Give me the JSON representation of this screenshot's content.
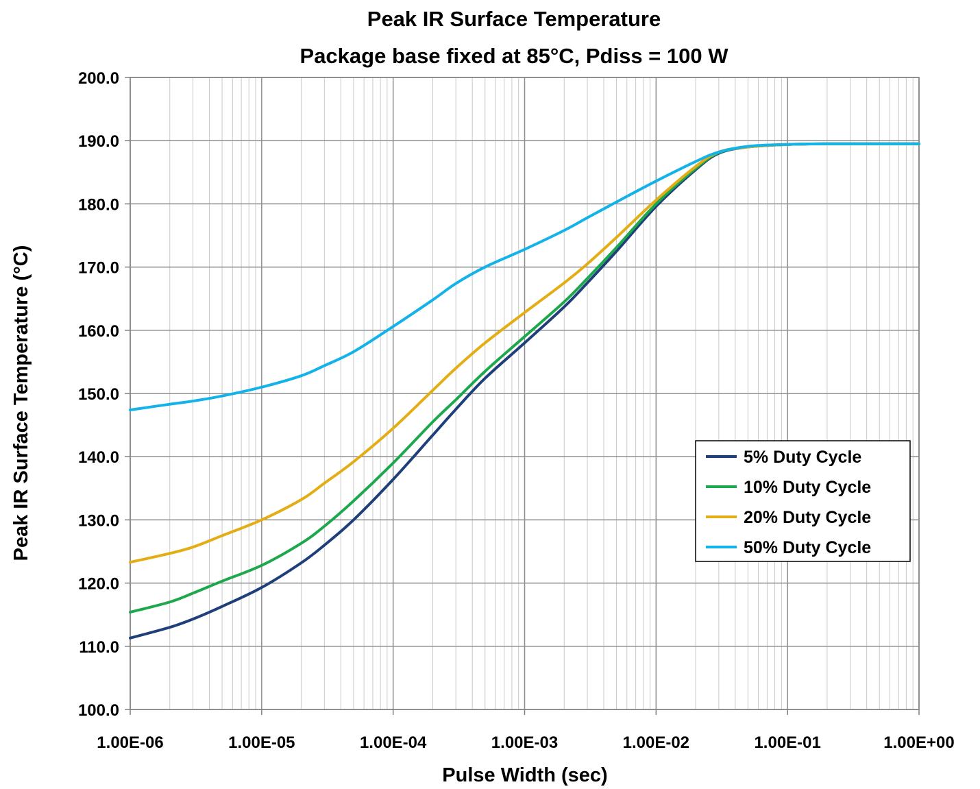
{
  "chart_data": {
    "type": "line",
    "title": "Peak IR Surface Temperature",
    "subtitle": "Package base fixed at 85°C, Pdiss = 100 W",
    "xlabel": "Pulse Width (sec)",
    "ylabel": "Peak IR Surface Temperature (°C)",
    "xscale": "log",
    "xlim": [
      1e-06,
      1
    ],
    "ylim": [
      100,
      200
    ],
    "xticks": [
      1e-06,
      1e-05,
      0.0001,
      0.001,
      0.01,
      0.1,
      1
    ],
    "xtick_labels": [
      "1.00E-06",
      "1.00E-05",
      "1.00E-04",
      "1.00E-03",
      "1.00E-02",
      "1.00E-01",
      "1.00E+00"
    ],
    "yticks": [
      100,
      110,
      120,
      130,
      140,
      150,
      160,
      170,
      180,
      190,
      200
    ],
    "ytick_labels": [
      "100.0",
      "110.0",
      "120.0",
      "130.0",
      "140.0",
      "150.0",
      "160.0",
      "170.0",
      "180.0",
      "190.0",
      "200.0"
    ],
    "grid": true,
    "legend_position": "right-middle",
    "series": [
      {
        "name": "5% Duty Cycle",
        "color": "#1f3f7a",
        "x": [
          1e-06,
          2e-06,
          3e-06,
          5e-06,
          1e-05,
          2e-05,
          3e-05,
          5e-05,
          0.0001,
          0.0002,
          0.0003,
          0.0005,
          0.001,
          0.002,
          0.003,
          0.005,
          0.01,
          0.02,
          0.03,
          0.05,
          0.1,
          0.2,
          0.5,
          1
        ],
        "y": [
          111.3,
          113.0,
          114.3,
          116.3,
          119.3,
          123.2,
          126.0,
          130.0,
          136.4,
          143.4,
          147.5,
          152.4,
          158.0,
          163.7,
          167.5,
          172.5,
          179.6,
          185.4,
          188.0,
          189.0,
          189.4,
          189.5,
          189.5,
          189.5
        ]
      },
      {
        "name": "10% Duty Cycle",
        "color": "#1ea84e",
        "x": [
          1e-06,
          2e-06,
          3e-06,
          5e-06,
          1e-05,
          2e-05,
          3e-05,
          5e-05,
          0.0001,
          0.0002,
          0.0003,
          0.0005,
          0.001,
          0.002,
          0.003,
          0.005,
          0.01,
          0.02,
          0.03,
          0.05,
          0.1,
          0.2,
          0.5,
          1
        ],
        "y": [
          115.4,
          117.0,
          118.4,
          120.3,
          122.8,
          126.3,
          129.0,
          133.0,
          139.0,
          145.5,
          149.0,
          153.5,
          159.0,
          164.5,
          168.2,
          173.1,
          180.0,
          185.6,
          188.1,
          189.0,
          189.4,
          189.5,
          189.5,
          189.5
        ]
      },
      {
        "name": "20% Duty Cycle",
        "color": "#e3ad15",
        "x": [
          1e-06,
          2e-06,
          3e-06,
          5e-06,
          1e-05,
          2e-05,
          3e-05,
          5e-05,
          0.0001,
          0.0002,
          0.0003,
          0.0005,
          0.001,
          0.002,
          0.003,
          0.005,
          0.01,
          0.02,
          0.03,
          0.05,
          0.1,
          0.2,
          0.5,
          1
        ],
        "y": [
          123.3,
          124.7,
          125.7,
          127.5,
          130.0,
          133.2,
          135.8,
          139.2,
          144.5,
          150.5,
          154.0,
          158.0,
          162.8,
          167.5,
          170.5,
          174.7,
          180.6,
          185.9,
          188.2,
          189.0,
          189.4,
          189.5,
          189.5,
          189.5
        ]
      },
      {
        "name": "50% Duty Cycle",
        "color": "#13b3e9",
        "x": [
          1e-06,
          2e-06,
          3e-06,
          5e-06,
          1e-05,
          2e-05,
          3e-05,
          5e-05,
          0.0001,
          0.0002,
          0.0003,
          0.0005,
          0.001,
          0.002,
          0.003,
          0.005,
          0.01,
          0.02,
          0.03,
          0.05,
          0.1,
          0.2,
          0.5,
          1
        ],
        "y": [
          147.4,
          148.3,
          148.8,
          149.6,
          151.0,
          152.8,
          154.4,
          156.6,
          160.6,
          164.8,
          167.4,
          170.0,
          172.8,
          175.8,
          177.8,
          180.3,
          183.6,
          186.7,
          188.2,
          189.1,
          189.4,
          189.5,
          189.5,
          189.5
        ]
      }
    ]
  }
}
